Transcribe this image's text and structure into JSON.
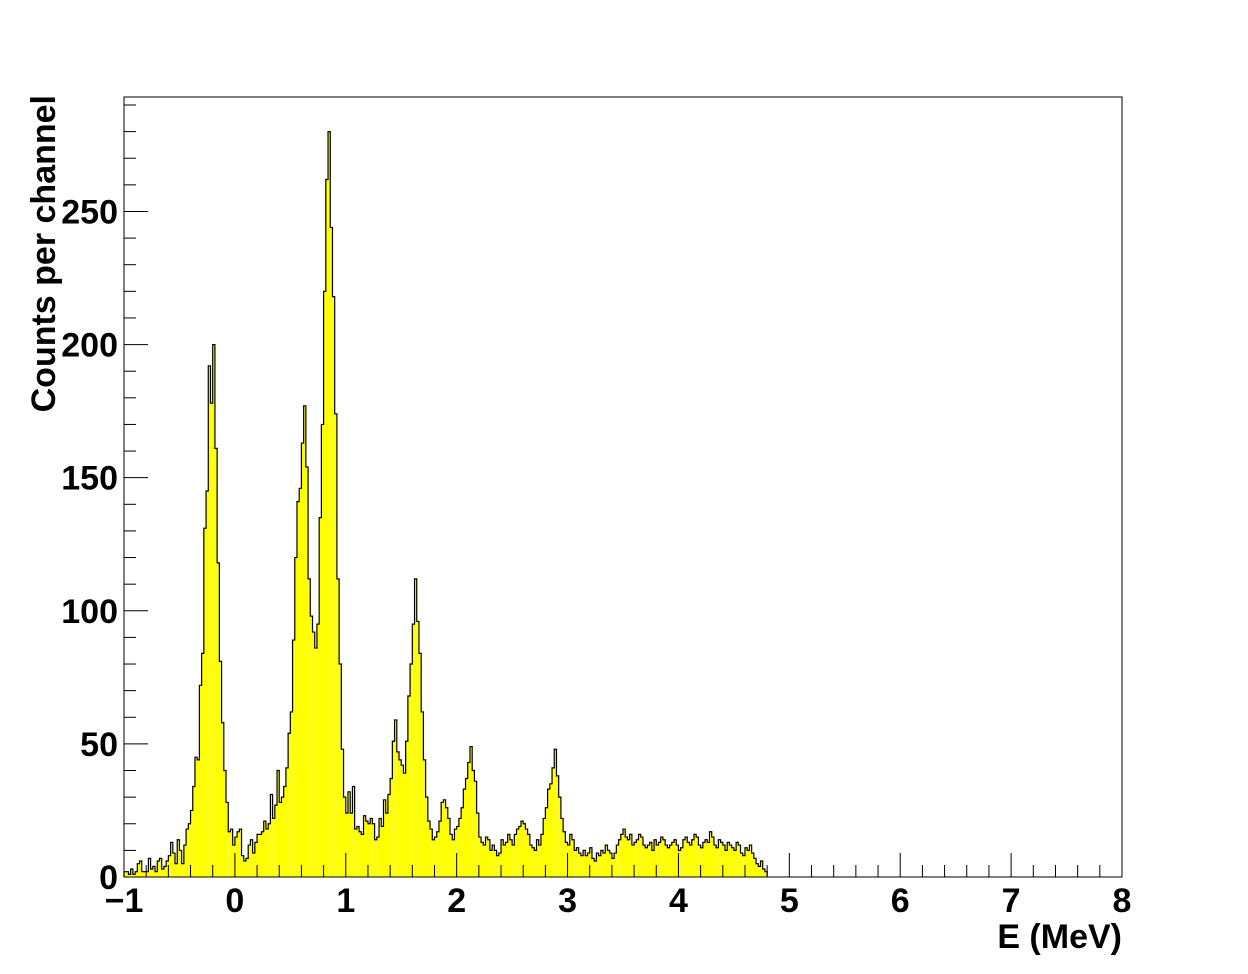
{
  "chart_data": {
    "type": "histogram",
    "xlabel": "E (MeV)",
    "ylabel": "Counts per channel",
    "xlim": [
      -1,
      8
    ],
    "ylim": [
      0,
      293
    ],
    "x_ticks": [
      -1,
      0,
      1,
      2,
      3,
      4,
      5,
      6,
      7,
      8
    ],
    "x_tick_labels": [
      "−1",
      "0",
      "1",
      "2",
      "3",
      "4",
      "5",
      "6",
      "7",
      "8"
    ],
    "y_ticks": [
      0,
      50,
      100,
      150,
      200,
      250
    ],
    "y_tick_labels": [
      "0",
      "50",
      "100",
      "150",
      "200",
      "250"
    ],
    "fill_color": "#ffff00",
    "line_color": "#000000",
    "grid": false,
    "legend": false,
    "bin_width": 0.02,
    "x_start": -1,
    "counts": [
      2,
      2,
      1,
      3,
      1,
      2,
      5,
      6,
      2,
      2,
      2,
      7,
      3,
      4,
      2,
      6,
      7,
      3,
      4,
      6,
      8,
      13,
      9,
      5,
      14,
      10,
      5,
      12,
      18,
      20,
      25,
      34,
      45,
      44,
      72,
      84,
      131,
      145,
      192,
      178,
      200,
      161,
      118,
      81,
      58,
      40,
      28,
      17,
      18,
      12,
      15,
      17,
      18,
      8,
      6,
      7,
      12,
      14,
      9,
      13,
      16,
      16,
      17,
      21,
      18,
      20,
      31,
      22,
      27,
      40,
      28,
      30,
      34,
      41,
      54,
      62,
      89,
      120,
      141,
      146,
      163,
      177,
      154,
      112,
      98,
      92,
      86,
      95,
      135,
      170,
      220,
      262,
      280,
      244,
      218,
      174,
      112,
      80,
      48,
      30,
      24,
      32,
      24,
      34,
      18,
      19,
      17,
      16,
      23,
      21,
      20,
      22,
      20,
      14,
      15,
      22,
      19,
      29,
      24,
      31,
      37,
      51,
      59,
      47,
      44,
      42,
      39,
      51,
      68,
      80,
      95,
      112,
      96,
      84,
      62,
      44,
      30,
      21,
      18,
      14,
      15,
      17,
      21,
      28,
      29,
      26,
      22,
      16,
      14,
      18,
      19,
      22,
      26,
      33,
      37,
      43,
      49,
      40,
      36,
      24,
      15,
      13,
      12,
      15,
      14,
      10,
      12,
      10,
      8,
      9,
      14,
      12,
      13,
      16,
      14,
      12,
      16,
      18,
      19,
      21,
      20,
      18,
      16,
      12,
      11,
      10,
      14,
      12,
      16,
      22,
      26,
      33,
      35,
      41,
      48,
      38,
      30,
      22,
      17,
      13,
      12,
      16,
      14,
      10,
      11,
      9,
      8,
      10,
      8,
      9,
      11,
      7,
      6,
      9,
      8,
      10,
      9,
      12,
      10,
      9,
      7,
      9,
      12,
      14,
      16,
      18,
      15,
      14,
      16,
      12,
      13,
      14,
      16,
      15,
      12,
      11,
      12,
      13,
      10,
      14,
      12,
      13,
      15,
      14,
      12,
      11,
      12,
      13,
      14,
      12,
      10,
      11,
      14,
      15,
      13,
      12,
      14,
      16,
      15,
      12,
      11,
      13,
      14,
      13,
      17,
      15,
      12,
      11,
      14,
      13,
      12,
      10,
      13,
      12,
      11,
      10,
      13,
      12,
      9,
      8,
      11,
      10,
      12,
      9,
      7,
      5,
      4,
      6,
      3,
      2
    ]
  }
}
